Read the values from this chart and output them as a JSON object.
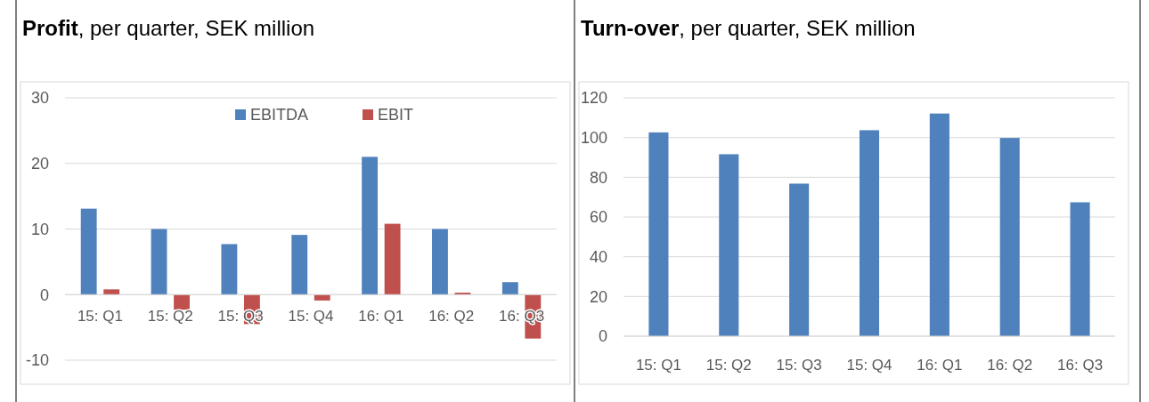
{
  "chart_data": [
    {
      "type": "bar",
      "title": "Profit, per quarter, SEK million",
      "categories": [
        "15: Q1",
        "15: Q2",
        "15: Q3",
        "15: Q4",
        "16: Q1",
        "16: Q2",
        "16: Q3"
      ],
      "series": [
        {
          "name": "EBITDA",
          "color": "#4f81bd",
          "values": [
            13.1,
            10,
            7.7,
            9.1,
            21,
            10,
            1.9
          ]
        },
        {
          "name": "EBIT",
          "color": "#c0504d",
          "values": [
            0.8,
            -2.3,
            -4.5,
            -0.9,
            10.8,
            0.3,
            -6.7
          ]
        }
      ],
      "ylim": [
        -10,
        30
      ],
      "yticks": [
        -10,
        0,
        10,
        20,
        30
      ],
      "grid": "y",
      "legend": "top"
    },
    {
      "type": "bar",
      "title": "Turn-over, per quarter, SEK million",
      "categories": [
        "15: Q1",
        "15: Q2",
        "15: Q3",
        "15: Q4",
        "16: Q1",
        "16: Q2",
        "16: Q3"
      ],
      "series": [
        {
          "color": "#4f81bd",
          "values": [
            102.6,
            91.6,
            76.8,
            103.7,
            112.1,
            99.8,
            67.4
          ]
        }
      ],
      "ylim": [
        0,
        120
      ],
      "yticks": [
        0,
        20,
        40,
        60,
        80,
        100,
        120
      ],
      "grid": "y"
    }
  ]
}
